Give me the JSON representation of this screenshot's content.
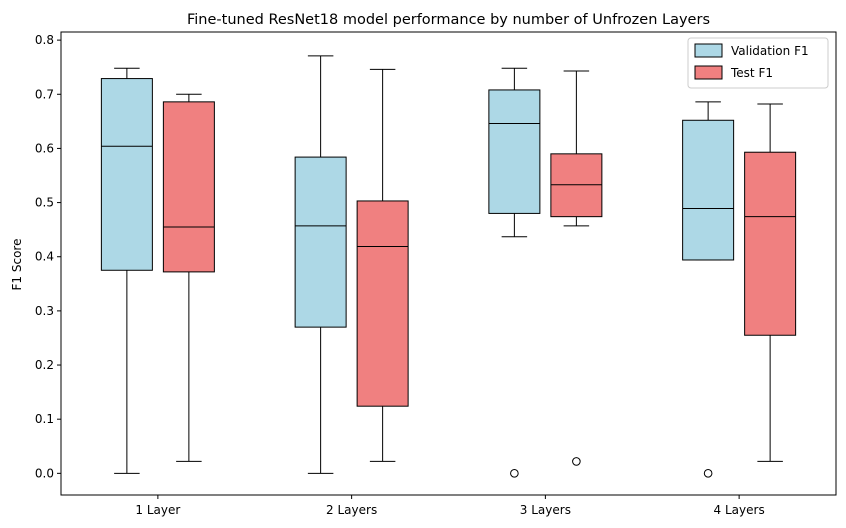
{
  "chart_data": {
    "type": "boxplot",
    "title": "Fine-tuned ResNet18 model performance by number of Unfrozen Layers",
    "xlabel": "",
    "ylabel": "F1 Score",
    "ylim": [
      -0.04,
      0.815
    ],
    "yticks": [
      "0.0",
      "0.1",
      "0.2",
      "0.3",
      "0.4",
      "0.5",
      "0.6",
      "0.7",
      "0.8"
    ],
    "ytick_values": [
      0.0,
      0.1,
      0.2,
      0.3,
      0.4,
      0.5,
      0.6,
      0.7,
      0.8
    ],
    "categories": [
      "1 Layer",
      "2 Layers",
      "3 Layers",
      "4 Layers"
    ],
    "legend_position": "top-right",
    "grid": false,
    "series": [
      {
        "name": "Validation F1",
        "color": "#add8e6",
        "boxes": [
          {
            "whisker_low": 0.0,
            "q1": 0.375,
            "median": 0.604,
            "q3": 0.729,
            "whisker_high": 0.748,
            "outliers": []
          },
          {
            "whisker_low": 0.0,
            "q1": 0.27,
            "median": 0.457,
            "q3": 0.584,
            "whisker_high": 0.771,
            "outliers": []
          },
          {
            "whisker_low": 0.437,
            "q1": 0.48,
            "median": 0.646,
            "q3": 0.708,
            "whisker_high": 0.748,
            "outliers": [
              0.0
            ]
          },
          {
            "whisker_low": 0.394,
            "q1": 0.394,
            "median": 0.489,
            "q3": 0.652,
            "whisker_high": 0.686,
            "outliers": [
              0.0
            ]
          }
        ]
      },
      {
        "name": "Test F1",
        "color": "#f08080",
        "boxes": [
          {
            "whisker_low": 0.022,
            "q1": 0.372,
            "median": 0.455,
            "q3": 0.686,
            "whisker_high": 0.7,
            "outliers": []
          },
          {
            "whisker_low": 0.022,
            "q1": 0.124,
            "median": 0.419,
            "q3": 0.503,
            "whisker_high": 0.746,
            "outliers": []
          },
          {
            "whisker_low": 0.457,
            "q1": 0.474,
            "median": 0.533,
            "q3": 0.59,
            "whisker_high": 0.743,
            "outliers": [
              0.022
            ]
          },
          {
            "whisker_low": 0.022,
            "q1": 0.255,
            "median": 0.474,
            "q3": 0.593,
            "whisker_high": 0.682,
            "outliers": []
          }
        ]
      }
    ]
  }
}
